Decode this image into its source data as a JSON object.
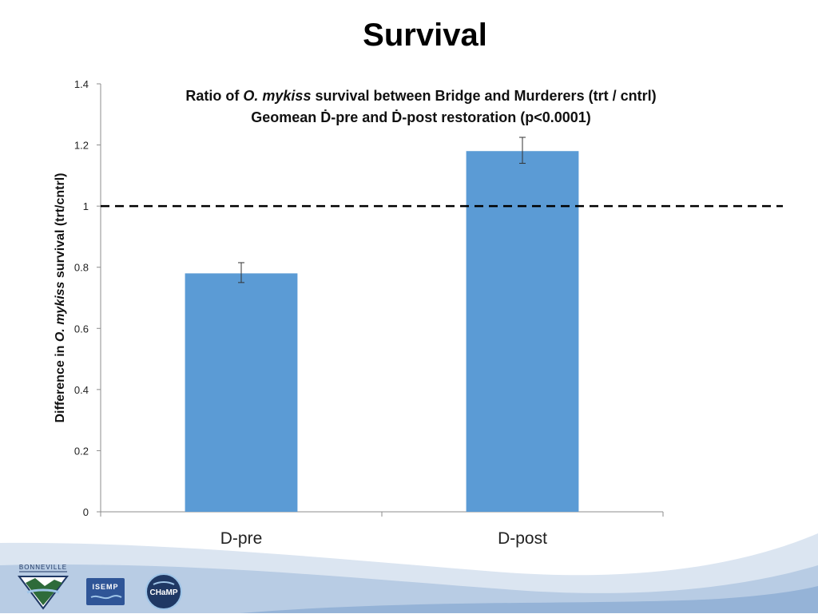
{
  "slide": {
    "title": "Survival"
  },
  "chart_data": {
    "type": "bar",
    "title_line1_parts": [
      {
        "text": "Ratio of ",
        "italic": false
      },
      {
        "text": "O. mykiss",
        "italic": true
      },
      {
        "text": " survival between Bridge and Murderers (trt / cntrl)",
        "italic": false
      }
    ],
    "title_line2": "Geomean Ḋ-pre and Ḋ-post restoration (p<0.0001)",
    "ylabel_parts": [
      {
        "text": "Difference in ",
        "italic": false
      },
      {
        "text": "O. mykiss",
        "italic": true
      },
      {
        "text": " survival (trt/cntrl)",
        "italic": false
      }
    ],
    "xlabel": "",
    "categories": [
      "D-pre",
      "D-post"
    ],
    "values": [
      0.78,
      1.18
    ],
    "error_low": [
      0.75,
      1.14
    ],
    "error_high": [
      0.815,
      1.225
    ],
    "ylim": [
      0,
      1.4
    ],
    "yticks": [
      0,
      0.2,
      0.4,
      0.6,
      0.8,
      1,
      1.2,
      1.4
    ],
    "ytick_labels": [
      "0",
      "0.2",
      "0.4",
      "0.6",
      "0.8",
      "1",
      "1.2",
      "1.4"
    ],
    "reference_line": 1,
    "grid": false,
    "bar_color": "#5b9bd5"
  },
  "logos": {
    "bonneville_text": "BONNEVILLE",
    "isemp_text": "ISEMP",
    "champ_text": "CHaMP"
  },
  "colors": {
    "wave_light": "#dbe5f1",
    "wave_mid": "#b8cce4",
    "wave_dark": "#95b3d7",
    "isemp_bg": "#2f5597",
    "champ_bg": "#1f3864"
  }
}
